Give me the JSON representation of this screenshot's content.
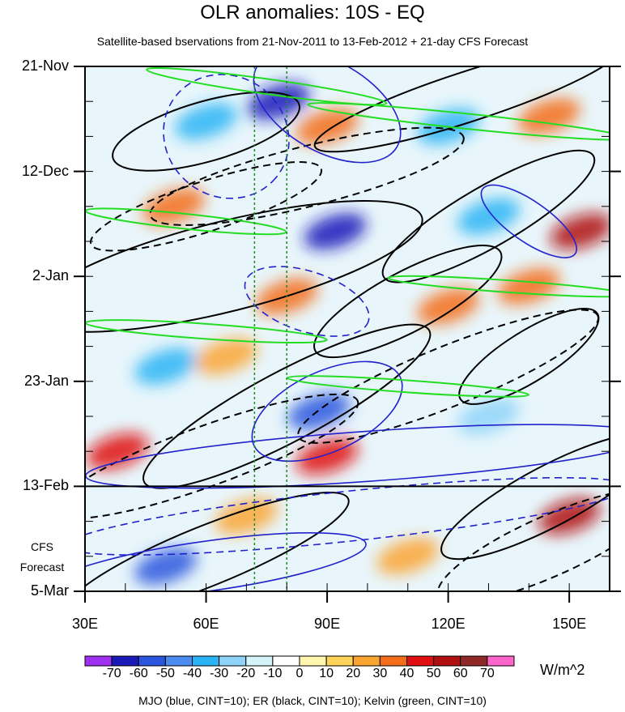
{
  "title": "OLR anomalies: 10S - EQ",
  "subtitle": "Satellite-based bservations from 21-Nov-2011 to 13-Feb-2012 + 21-day CFS Forecast",
  "forecast_label_line1": "CFS",
  "forecast_label_line2": "Forecast",
  "units": "W/m^2",
  "caption": "MJO (blue, CINT=10); ER (black, CINT=10); Kelvin (green, CINT=10)",
  "colors": {
    "mjo": "#2222cc",
    "er": "#000000",
    "kelvin": "#22dd22",
    "reference_lines": "#228822"
  },
  "chart_data": {
    "type": "heatmap",
    "x_axis": {
      "range": [
        30,
        160
      ],
      "ticks": [
        30,
        60,
        90,
        120,
        150
      ],
      "tick_labels": [
        "30E",
        "60E",
        "90E",
        "120E",
        "150E"
      ]
    },
    "y_axis": {
      "range_days": [
        0,
        105
      ],
      "ticks": [
        0,
        21,
        42,
        63,
        84,
        105
      ],
      "tick_labels": [
        "21-Nov",
        "12-Dec",
        "2-Jan",
        "23-Jan",
        "13-Feb",
        "5-Mar"
      ],
      "reversed": true
    },
    "forecast_start_day": 84,
    "reference_longitudes": [
      72,
      80
    ],
    "colorbar": {
      "levels": [
        "-70",
        "-60",
        "-50",
        "-40",
        "-30",
        "-20",
        "-10",
        "0",
        "10",
        "20",
        "30",
        "40",
        "50",
        "60",
        "70"
      ],
      "colors": [
        "#9f30f0",
        "#1a1ab8",
        "#2c55dd",
        "#4a8cef",
        "#2ab4f5",
        "#8fd4f8",
        "#d4f4fa",
        "#ffffff",
        "#fff6b0",
        "#ffd45a",
        "#fba531",
        "#f46d1a",
        "#e01010",
        "#b01010",
        "#902828",
        "#ff66cc"
      ]
    },
    "anomaly_features": [
      {
        "lon": 78,
        "day": 7,
        "value": -70
      },
      {
        "lon": 60,
        "day": 11,
        "value": -40
      },
      {
        "lon": 120,
        "day": 12,
        "value": -40
      },
      {
        "lon": 145,
        "day": 10,
        "value": 30
      },
      {
        "lon": 90,
        "day": 12,
        "value": 30
      },
      {
        "lon": 52,
        "day": 28,
        "value": 30
      },
      {
        "lon": 92,
        "day": 33,
        "value": -70
      },
      {
        "lon": 130,
        "day": 30,
        "value": -40
      },
      {
        "lon": 153,
        "day": 33,
        "value": 50
      },
      {
        "lon": 80,
        "day": 46,
        "value": 30
      },
      {
        "lon": 120,
        "day": 48,
        "value": 30
      },
      {
        "lon": 140,
        "day": 44,
        "value": 30
      },
      {
        "lon": 50,
        "day": 60,
        "value": -40
      },
      {
        "lon": 88,
        "day": 69,
        "value": -60
      },
      {
        "lon": 65,
        "day": 58,
        "value": 20
      },
      {
        "lon": 38,
        "day": 77,
        "value": 40
      },
      {
        "lon": 90,
        "day": 78,
        "value": 40
      },
      {
        "lon": 130,
        "day": 70,
        "value": -30
      },
      {
        "lon": 150,
        "day": 90,
        "value": 50
      },
      {
        "lon": 50,
        "day": 100,
        "value": -60
      },
      {
        "lon": 70,
        "day": 90,
        "value": 20
      },
      {
        "lon": 110,
        "day": 98,
        "value": 20
      }
    ],
    "er_contours": [
      {
        "lon": 60,
        "day": 13,
        "rx": 24,
        "ry": 6,
        "rot": -16,
        "dash": false
      },
      {
        "lon": 125,
        "day": 6,
        "rx": 40,
        "ry": 5,
        "rot": -18,
        "dash": false
      },
      {
        "lon": 65,
        "day": 40,
        "rx": 50,
        "ry": 9,
        "rot": -14,
        "dash": false
      },
      {
        "lon": 130,
        "day": 30,
        "rx": 30,
        "ry": 6,
        "rot": -30,
        "dash": false
      },
      {
        "lon": 80,
        "day": 68,
        "rx": 40,
        "ry": 7,
        "rot": -28,
        "dash": false
      },
      {
        "lon": 110,
        "day": 47,
        "rx": 26,
        "ry": 6,
        "rot": -28,
        "dash": false
      },
      {
        "lon": 140,
        "day": 58,
        "rx": 20,
        "ry": 5,
        "rot": -32,
        "dash": false
      },
      {
        "lon": 145,
        "day": 86,
        "rx": 30,
        "ry": 6,
        "rot": -28,
        "dash": false
      },
      {
        "lon": 60,
        "day": 98,
        "rx": 38,
        "ry": 6,
        "rot": -22,
        "dash": false
      },
      {
        "lon": 85,
        "day": 22,
        "rx": 40,
        "ry": 6,
        "rot": -14,
        "dash": true
      },
      {
        "lon": 60,
        "day": 28,
        "rx": 30,
        "ry": 5,
        "rot": -18,
        "dash": true
      },
      {
        "lon": 120,
        "day": 62,
        "rx": 40,
        "ry": 6,
        "rot": -22,
        "dash": true
      },
      {
        "lon": 60,
        "day": 78,
        "rx": 40,
        "ry": 6,
        "rot": -20,
        "dash": true
      },
      {
        "lon": 145,
        "day": 96,
        "rx": 30,
        "ry": 6,
        "rot": -24,
        "dash": true
      }
    ],
    "mjo_contours": [
      {
        "lon": 65,
        "day": 14,
        "rx": 16,
        "ry": 12,
        "rot": 40,
        "dash": true
      },
      {
        "lon": 90,
        "day": 8,
        "rx": 20,
        "ry": 9,
        "rot": 30,
        "dash": false
      },
      {
        "lon": 85,
        "day": 47,
        "rx": 16,
        "ry": 6,
        "rot": 18,
        "dash": true
      },
      {
        "lon": 90,
        "day": 69,
        "rx": 20,
        "ry": 8,
        "rot": -25,
        "dash": false
      },
      {
        "lon": 100,
        "day": 78,
        "rx": 70,
        "ry": 5,
        "rot": -4,
        "dash": false
      },
      {
        "lon": 95,
        "day": 90,
        "rx": 70,
        "ry": 5,
        "rot": -6,
        "dash": true
      },
      {
        "lon": 60,
        "day": 100,
        "rx": 40,
        "ry": 5,
        "rot": -8,
        "dash": false
      },
      {
        "lon": 140,
        "day": 31,
        "rx": 14,
        "ry": 4,
        "rot": 35,
        "dash": false
      }
    ],
    "kelvin_contours": [
      {
        "lon": 75,
        "day": 4,
        "rx": 30,
        "ry": 1.5,
        "rot": 8
      },
      {
        "lon": 125,
        "day": 11,
        "rx": 40,
        "ry": 1.5,
        "rot": 6
      },
      {
        "lon": 55,
        "day": 31,
        "rx": 25,
        "ry": 1.5,
        "rot": 6
      },
      {
        "lon": 135,
        "day": 44,
        "rx": 30,
        "ry": 1.2,
        "rot": 4
      },
      {
        "lon": 60,
        "day": 53,
        "rx": 30,
        "ry": 1.5,
        "rot": 4
      },
      {
        "lon": 110,
        "day": 64,
        "rx": 30,
        "ry": 1.2,
        "rot": 4
      }
    ]
  }
}
